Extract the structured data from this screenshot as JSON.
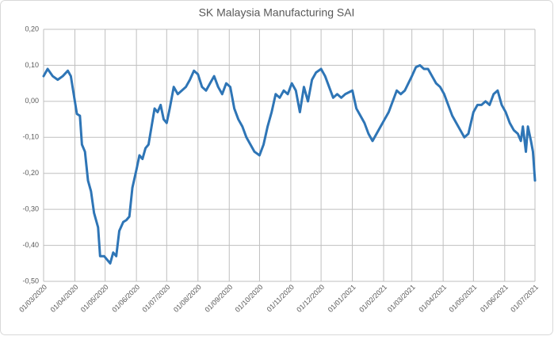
{
  "chart_data": {
    "type": "line",
    "title": "SK Malaysia Manufacturing SAI",
    "xlim": [
      "01/03/2020",
      "01/07/2021"
    ],
    "xticks": [
      "01/03/2020",
      "01/04/2020",
      "01/05/2020",
      "01/06/2020",
      "01/07/2020",
      "01/08/2020",
      "01/09/2020",
      "01/10/2020",
      "01/11/2020",
      "01/12/2020",
      "01/01/2021",
      "01/02/2021",
      "01/03/2021",
      "01/04/2021",
      "01/05/2021",
      "01/06/2021",
      "01/07/2021"
    ],
    "ylim": [
      -0.5,
      0.2
    ],
    "yticks": [
      {
        "value": -0.5,
        "label": "-0,50"
      },
      {
        "value": -0.4,
        "label": "-0,40"
      },
      {
        "value": -0.3,
        "label": "-0,30"
      },
      {
        "value": -0.2,
        "label": "-0,20"
      },
      {
        "value": -0.1,
        "label": "-0,10"
      },
      {
        "value": 0,
        "label": "0,00"
      },
      {
        "value": 0.1,
        "label": "0,10"
      },
      {
        "value": 0.2,
        "label": "0,20"
      }
    ],
    "grid": true,
    "series": [
      {
        "name": "SK Malaysia Manufacturing SAI",
        "color": "#2e75b6",
        "x": [
          "01/03/2020",
          "05/03/2020",
          "10/03/2020",
          "15/03/2020",
          "20/03/2020",
          "25/03/2020",
          "28/03/2020",
          "01/04/2020",
          "03/04/2020",
          "06/04/2020",
          "08/04/2020",
          "11/04/2020",
          "14/04/2020",
          "17/04/2020",
          "20/04/2020",
          "24/04/2020",
          "26/04/2020",
          "30/04/2020",
          "03/05/2020",
          "06/05/2020",
          "09/05/2020",
          "12/05/2020",
          "15/05/2020",
          "19/05/2020",
          "22/05/2020",
          "25/05/2020",
          "28/05/2020",
          "01/06/2020",
          "04/06/2020",
          "07/06/2020",
          "10/06/2020",
          "13/06/2020",
          "16/06/2020",
          "19/06/2020",
          "22/06/2020",
          "25/06/2020",
          "28/06/2020",
          "01/07/2020",
          "04/07/2020",
          "08/07/2020",
          "12/07/2020",
          "16/07/2020",
          "20/07/2020",
          "24/07/2020",
          "28/07/2020",
          "01/08/2020",
          "05/08/2020",
          "09/08/2020",
          "13/08/2020",
          "17/08/2020",
          "21/08/2020",
          "25/08/2020",
          "29/08/2020",
          "02/09/2020",
          "06/09/2020",
          "10/09/2020",
          "14/09/2020",
          "18/09/2020",
          "22/09/2020",
          "26/09/2020",
          "01/10/2020",
          "05/10/2020",
          "09/10/2020",
          "13/10/2020",
          "17/10/2020",
          "21/10/2020",
          "25/10/2020",
          "29/10/2020",
          "02/11/2020",
          "06/11/2020",
          "10/11/2020",
          "14/11/2020",
          "18/11/2020",
          "22/11/2020",
          "26/11/2020",
          "01/12/2020",
          "05/12/2020",
          "09/12/2020",
          "13/12/2020",
          "17/12/2020",
          "21/12/2020",
          "25/12/2020",
          "01/01/2021",
          "05/01/2021",
          "09/01/2021",
          "13/01/2021",
          "17/01/2021",
          "21/01/2021",
          "25/01/2021",
          "29/01/2021",
          "02/02/2021",
          "06/02/2021",
          "10/02/2021",
          "14/02/2021",
          "18/02/2021",
          "22/02/2021",
          "01/03/2021",
          "05/03/2021",
          "09/03/2021",
          "13/03/2021",
          "17/03/2021",
          "21/03/2021",
          "25/03/2021",
          "29/03/2021",
          "02/04/2021",
          "06/04/2021",
          "10/04/2021",
          "14/04/2021",
          "18/04/2021",
          "22/04/2021",
          "26/04/2021",
          "01/05/2021",
          "05/05/2021",
          "09/05/2021",
          "13/05/2021",
          "17/05/2021",
          "21/05/2021",
          "25/05/2021",
          "29/05/2021",
          "02/06/2021",
          "06/06/2021",
          "10/06/2021",
          "14/06/2021",
          "17/06/2021",
          "19/06/2021",
          "22/06/2021",
          "24/06/2021",
          "27/06/2021",
          "29/06/2021",
          "01/07/2021"
        ],
        "values": [
          0.07,
          0.09,
          0.07,
          0.06,
          0.07,
          0.085,
          0.07,
          0.0,
          -0.035,
          -0.04,
          -0.12,
          -0.14,
          -0.22,
          -0.25,
          -0.31,
          -0.35,
          -0.43,
          -0.43,
          -0.44,
          -0.45,
          -0.42,
          -0.43,
          -0.36,
          -0.335,
          -0.33,
          -0.32,
          -0.24,
          -0.19,
          -0.15,
          -0.16,
          -0.13,
          -0.12,
          -0.07,
          -0.02,
          -0.03,
          -0.01,
          -0.05,
          -0.06,
          -0.02,
          0.04,
          0.02,
          0.03,
          0.04,
          0.06,
          0.085,
          0.075,
          0.04,
          0.03,
          0.05,
          0.07,
          0.04,
          0.02,
          0.05,
          0.04,
          -0.02,
          -0.05,
          -0.07,
          -0.1,
          -0.12,
          -0.14,
          -0.15,
          -0.12,
          -0.07,
          -0.03,
          0.02,
          0.01,
          0.03,
          0.02,
          0.05,
          0.03,
          -0.03,
          0.04,
          0.0,
          0.06,
          0.08,
          0.09,
          0.07,
          0.04,
          0.01,
          0.02,
          0.01,
          0.02,
          0.03,
          -0.02,
          -0.04,
          -0.06,
          -0.09,
          -0.11,
          -0.09,
          -0.07,
          -0.05,
          -0.03,
          0.0,
          0.03,
          0.02,
          0.03,
          0.07,
          0.095,
          0.1,
          0.09,
          0.09,
          0.07,
          0.05,
          0.04,
          0.02,
          -0.01,
          -0.04,
          -0.06,
          -0.08,
          -0.1,
          -0.09,
          -0.03,
          -0.01,
          -0.01,
          0.0,
          -0.01,
          0.02,
          0.03,
          -0.01,
          -0.03,
          -0.06,
          -0.08,
          -0.09,
          -0.11,
          -0.07,
          -0.14,
          -0.07,
          -0.11,
          -0.14,
          -0.22
        ]
      }
    ]
  }
}
